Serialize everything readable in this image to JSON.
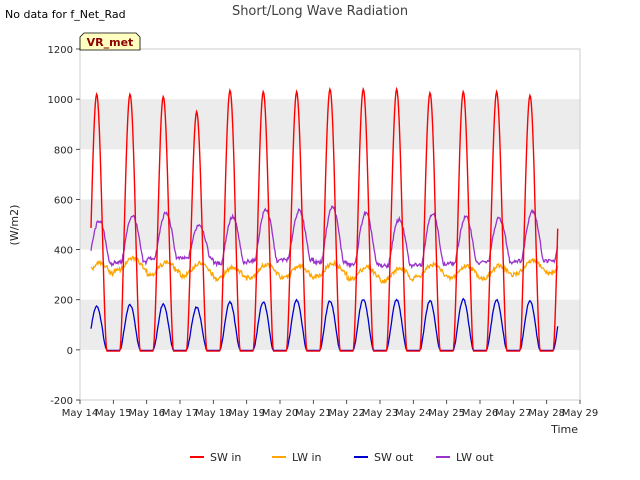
{
  "corner_note": "No data for f_Net_Rad",
  "site_badge": "VR_met",
  "colors": {
    "sw_in": "#ff0000",
    "lw_in": "#ffa500",
    "sw_out": "#0000cd",
    "lw_out": "#9932cc",
    "band": "#ececec",
    "badge_bg": "#ffffc0",
    "badge_text": "#8b0000"
  },
  "chart_data": {
    "type": "line",
    "title": "Short/Long Wave Radiation",
    "xlabel": "Time",
    "ylabel": "(W/m2)",
    "ylim": [
      -200,
      1200
    ],
    "yticks": [
      -200,
      0,
      200,
      400,
      600,
      800,
      1000,
      1200
    ],
    "xlim": [
      14,
      29
    ],
    "xticks": [
      14,
      15,
      16,
      17,
      18,
      19,
      20,
      21,
      22,
      23,
      24,
      25,
      26,
      27,
      28,
      29
    ],
    "xtick_labels": [
      "May 14",
      "May 15",
      "May 16",
      "May 17",
      "May 18",
      "May 19",
      "May 20",
      "May 21",
      "May 22",
      "May 23",
      "May 24",
      "May 25",
      "May 26",
      "May 27",
      "May 28",
      "May 29"
    ],
    "grid": "horizontal bands",
    "legend_position": "bottom-center",
    "x_start": 14.33,
    "x_end": 28.33,
    "series": [
      {
        "name": "SW in",
        "color_key": "sw_in",
        "daily_peak": [
          1020,
          1020,
          1010,
          950,
          1035,
          1030,
          1030,
          1040,
          1040,
          1040,
          1025,
          1030,
          1030,
          1015
        ]
      },
      {
        "name": "LW in",
        "color_key": "lw_in",
        "daily_mean": [
          320,
          340,
          325,
          320,
          305,
          315,
          310,
          320,
          305,
          300,
          315,
          310,
          310,
          330
        ]
      },
      {
        "name": "SW out",
        "color_key": "sw_out",
        "daily_peak": [
          175,
          180,
          182,
          170,
          190,
          190,
          198,
          195,
          202,
          200,
          195,
          202,
          200,
          195
        ]
      },
      {
        "name": "LW out",
        "color_key": "lw_out",
        "night_level": [
          340,
          350,
          365,
          365,
          345,
          355,
          360,
          350,
          340,
          335,
          340,
          345,
          350,
          355
        ],
        "daily_peak": [
          515,
          535,
          545,
          500,
          530,
          560,
          555,
          570,
          545,
          520,
          545,
          530,
          525,
          555
        ]
      }
    ]
  }
}
